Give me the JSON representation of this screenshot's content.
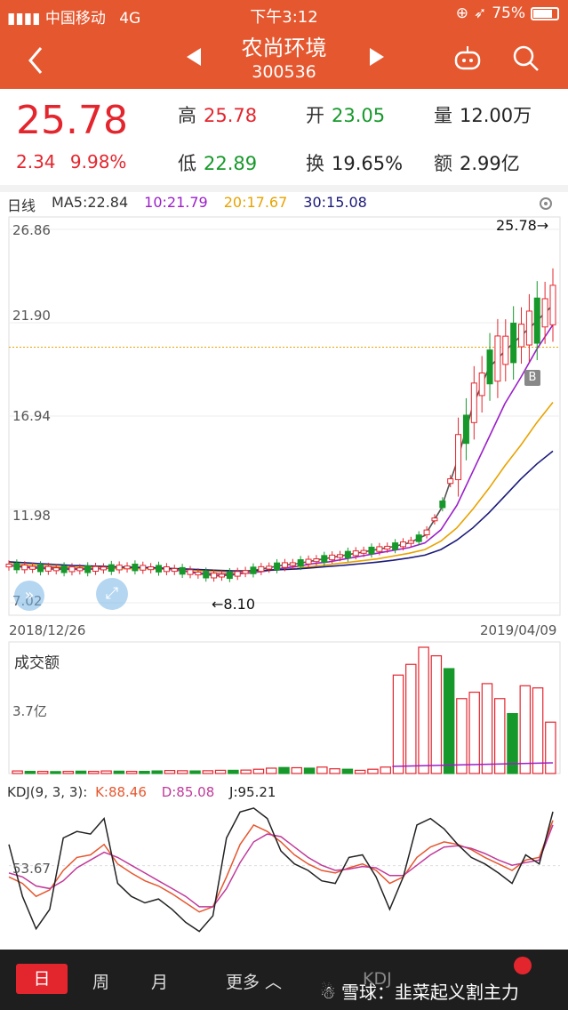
{
  "status_bar": {
    "carrier": "中国移动",
    "network": "4G",
    "time": "下午3:12",
    "battery": "75%"
  },
  "header": {
    "stock_name": "农尚环境",
    "stock_code": "300536"
  },
  "quote": {
    "price": "25.78",
    "change": "2.34",
    "change_pct": "9.98%",
    "high_label": "高",
    "high": "25.78",
    "low_label": "低",
    "low": "22.89",
    "open_label": "开",
    "open": "23.05",
    "turnover_label": "换",
    "turnover": "19.65%",
    "volume_label": "量",
    "volume": "12.00万",
    "amount_label": "额",
    "amount": "2.99亿"
  },
  "kline": {
    "period_label": "日线",
    "ma5": "MA5:22.84",
    "ma10": "10:21.79",
    "ma20": "20:17.67",
    "ma30": "30:15.08",
    "y_ticks": [
      "26.86",
      "21.90",
      "16.94",
      "11.98",
      "7.02"
    ],
    "max_annotation": "25.78→",
    "min_annotation": "←8.10",
    "start_date": "2018/12/26",
    "end_date": "2019/04/09",
    "marker": "B"
  },
  "volume_panel": {
    "title": "成交额",
    "tick": "3.7亿"
  },
  "kdj_panel": {
    "title": "KDJ(9, 3, 3):",
    "k": "K:88.46",
    "d": "D:85.08",
    "j": "J:95.21",
    "tick": "53.67"
  },
  "bottom_bar": {
    "tabs": [
      "日",
      "周",
      "月",
      "更多"
    ],
    "indicator": "KDJ",
    "watermark": "雪球：韭菜起义割主力"
  },
  "colors": {
    "header": "#e5572f",
    "up": "#e3262e",
    "down": "#16992a",
    "ma5": "#555555",
    "ma10": "#9b1fc9",
    "ma20": "#e8a300",
    "ma30": "#1a1a7a"
  },
  "chart_data": [
    {
      "type": "line",
      "title": "日线",
      "ylim": [
        7.02,
        26.86
      ],
      "y_ticks": [
        26.86,
        21.9,
        16.94,
        11.98,
        7.02
      ],
      "x_range": [
        "2018/12/26",
        "2019/04/09"
      ],
      "series": [
        {
          "name": "MA5",
          "values": [
            9.0,
            8.9,
            8.85,
            8.8,
            8.8,
            8.8,
            8.85,
            8.9,
            8.9,
            8.85,
            8.8,
            8.7,
            8.55,
            8.45,
            8.5,
            8.7,
            8.85,
            9.0,
            9.1,
            9.25,
            9.4,
            9.55,
            9.7,
            9.85,
            10.0,
            10.2,
            10.6,
            12.0,
            14.5,
            17.5,
            19.5,
            20.4,
            21.2,
            22.0,
            22.84
          ]
        },
        {
          "name": "10",
          "values": [
            9.0,
            8.95,
            8.9,
            8.88,
            8.85,
            8.85,
            8.85,
            8.85,
            8.85,
            8.85,
            8.8,
            8.7,
            8.6,
            8.55,
            8.55,
            8.6,
            8.7,
            8.85,
            8.95,
            9.1,
            9.2,
            9.35,
            9.5,
            9.65,
            9.8,
            9.95,
            10.2,
            10.9,
            12.2,
            14.0,
            15.8,
            17.6,
            19.0,
            20.5,
            21.79
          ]
        },
        {
          "name": "20",
          "values": [
            9.1,
            9.05,
            9.0,
            8.95,
            8.9,
            8.9,
            8.88,
            8.85,
            8.85,
            8.85,
            8.82,
            8.78,
            8.72,
            8.68,
            8.65,
            8.68,
            8.72,
            8.78,
            8.85,
            8.95,
            9.05,
            9.15,
            9.25,
            9.35,
            9.5,
            9.65,
            9.85,
            10.3,
            11.0,
            12.0,
            13.1,
            14.3,
            15.4,
            16.6,
            17.67
          ]
        },
        {
          "name": "30",
          "values": [
            9.2,
            9.15,
            9.1,
            9.05,
            9.0,
            8.98,
            8.95,
            8.92,
            8.9,
            8.88,
            8.85,
            8.82,
            8.78,
            8.75,
            8.72,
            8.72,
            8.74,
            8.78,
            8.82,
            8.88,
            8.95,
            9.02,
            9.1,
            9.18,
            9.28,
            9.4,
            9.55,
            9.85,
            10.35,
            11.0,
            11.8,
            12.7,
            13.6,
            14.4,
            15.08
          ]
        }
      ]
    },
    {
      "type": "bar",
      "title": "成交额",
      "ylim": [
        0,
        5.9
      ],
      "values": [
        0.12,
        0.1,
        0.1,
        0.09,
        0.1,
        0.11,
        0.1,
        0.12,
        0.11,
        0.1,
        0.1,
        0.12,
        0.14,
        0.13,
        0.12,
        0.13,
        0.15,
        0.15,
        0.16,
        0.2,
        0.25,
        0.28,
        0.27,
        0.25,
        0.3,
        0.22,
        0.2,
        0.15,
        0.2,
        0.3,
        4.6,
        5.1,
        5.9,
        5.5,
        4.9,
        3.5,
        3.8,
        4.2,
        3.5,
        2.8,
        4.1,
        4.0,
        2.4
      ],
      "up": [
        1,
        0,
        1,
        0,
        1,
        0,
        1,
        1,
        0,
        1,
        0,
        0,
        1,
        1,
        0,
        1,
        1,
        0,
        1,
        1,
        1,
        0,
        1,
        0,
        1,
        1,
        0,
        1,
        1,
        1,
        1,
        1,
        1,
        1,
        0,
        1,
        1,
        1,
        1,
        0,
        1,
        1,
        1
      ]
    },
    {
      "type": "line",
      "title": "KDJ(9, 3, 3)",
      "ylim": [
        0,
        100
      ],
      "series": [
        {
          "name": "K",
          "values": [
            45,
            40,
            30,
            35,
            50,
            60,
            62,
            70,
            55,
            48,
            42,
            38,
            32,
            25,
            18,
            22,
            45,
            70,
            85,
            80,
            72,
            62,
            55,
            50,
            48,
            52,
            55,
            50,
            40,
            45,
            60,
            68,
            72,
            70,
            66,
            60,
            55,
            50,
            58,
            60,
            88.46
          ]
        },
        {
          "name": "D",
          "values": [
            48,
            45,
            38,
            36,
            42,
            52,
            58,
            64,
            60,
            54,
            48,
            42,
            36,
            30,
            22,
            22,
            36,
            56,
            72,
            78,
            76,
            68,
            60,
            54,
            50,
            51,
            53,
            52,
            46,
            46,
            54,
            62,
            68,
            69,
            67,
            63,
            58,
            54,
            56,
            58,
            85.08
          ]
        },
        {
          "name": "J",
          "values": [
            70,
            30,
            5,
            20,
            75,
            80,
            78,
            90,
            40,
            30,
            25,
            28,
            20,
            10,
            3,
            15,
            75,
            95,
            98,
            90,
            65,
            55,
            50,
            42,
            40,
            60,
            62,
            45,
            20,
            45,
            85,
            90,
            82,
            70,
            60,
            55,
            48,
            40,
            62,
            55,
            95.21
          ]
        }
      ]
    }
  ]
}
